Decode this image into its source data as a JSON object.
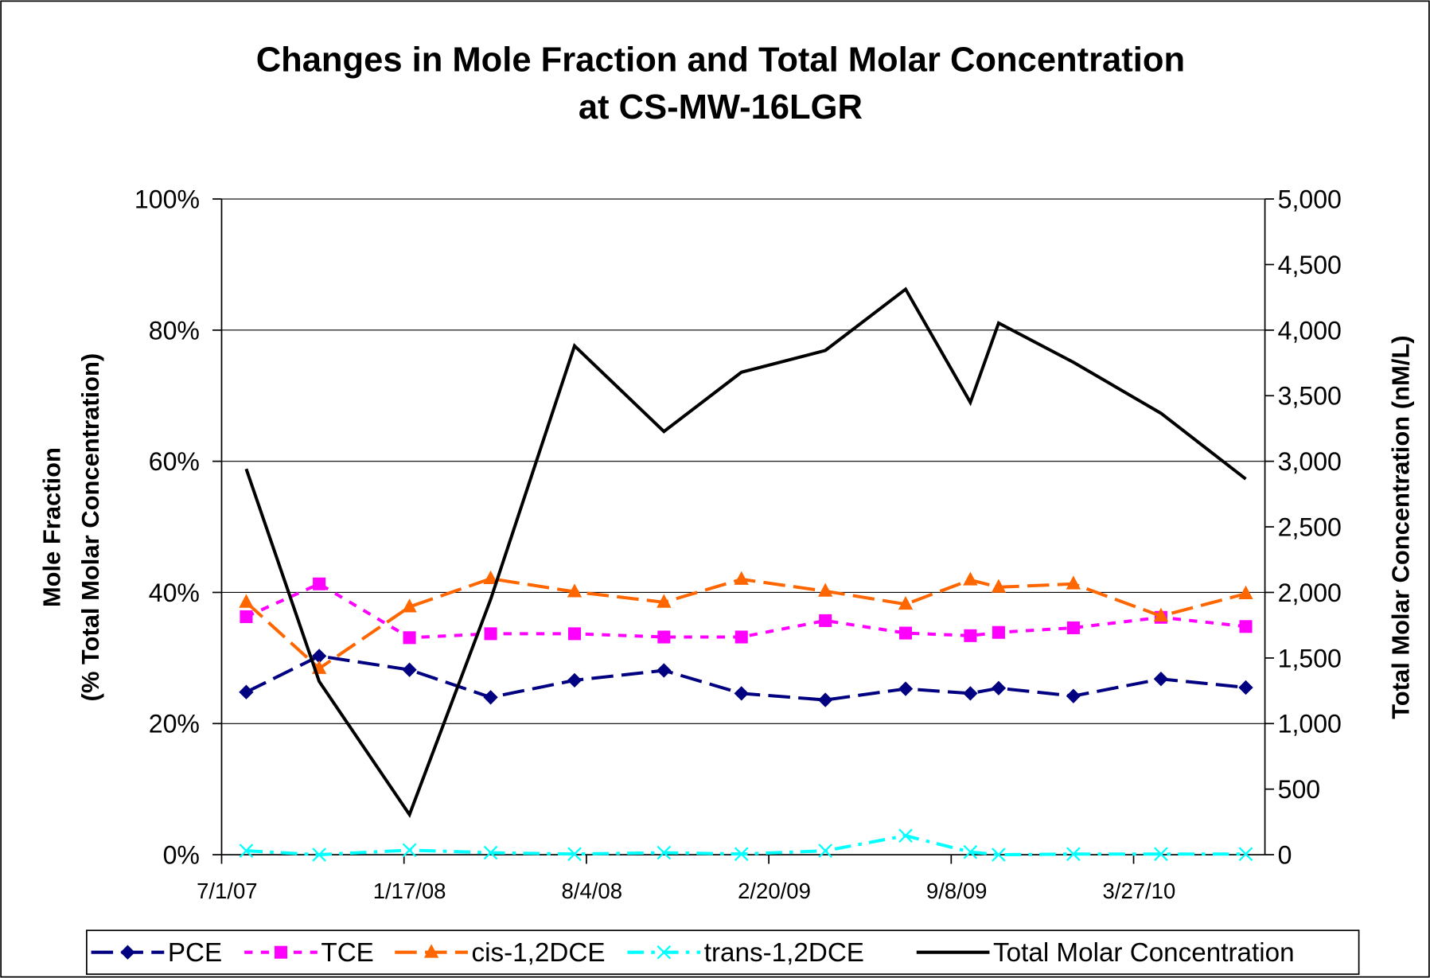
{
  "chart_data": {
    "type": "line",
    "title": [
      "Changes in Mole Fraction and Total Molar Concentration",
      "at CS-MW-16LGR"
    ],
    "ylabel": [
      "Mole Fraction",
      "(% Total Molar Concentration)"
    ],
    "y2label": "Total Molar Concentration (nM/L)",
    "x": [
      "7/28/07",
      "10/16/07",
      "1/23/08",
      "4/21/08",
      "7/22/08",
      "10/28/08",
      "1/21/09",
      "4/23/09",
      "7/20/09",
      "9/29/09",
      "10/30/09",
      "1/20/10",
      "4/26/10",
      "7/28/10"
    ],
    "xlim": [
      "7/1/07",
      "8/18/10"
    ],
    "xticks": [
      "7/1/07",
      "1/17/08",
      "8/4/08",
      "2/20/09",
      "9/8/09",
      "3/27/10"
    ],
    "ylim": [
      0,
      100
    ],
    "yticks": [
      {
        "value": 0,
        "label": "0%"
      },
      {
        "value": 20,
        "label": "20%"
      },
      {
        "value": 40,
        "label": "40%"
      },
      {
        "value": 60,
        "label": "60%"
      },
      {
        "value": 80,
        "label": "80%"
      },
      {
        "value": 100,
        "label": "100%"
      }
    ],
    "y2lim": [
      0,
      5000
    ],
    "y2ticks": [
      0,
      500,
      {
        "value": 1000,
        "label": "1,000"
      },
      {
        "value": 1500,
        "label": "1,500"
      },
      {
        "value": 2000,
        "label": "2,000"
      },
      {
        "value": 2500,
        "label": "2,500"
      },
      {
        "value": 3000,
        "label": "3,000"
      },
      {
        "value": 3500,
        "label": "3,500"
      },
      {
        "value": 4000,
        "label": "4,000"
      },
      {
        "value": 4500,
        "label": "4,500"
      },
      {
        "value": 5000,
        "label": "5,000"
      }
    ],
    "grid": true,
    "legend": "bottom",
    "series": [
      {
        "name": "PCE",
        "color": "#000080",
        "marker": "diamond",
        "linestyle": "long-dash",
        "values": [
          24.8,
          30.3,
          28.2,
          24.0,
          26.6,
          28.1,
          24.6,
          23.6,
          25.3,
          24.6,
          25.4,
          24.2,
          26.8,
          25.5
        ]
      },
      {
        "name": "TCE",
        "color": "#ff00ff",
        "marker": "square",
        "linestyle": "dash",
        "values": [
          36.3,
          41.3,
          33.1,
          33.7,
          33.7,
          33.2,
          33.2,
          35.7,
          33.8,
          33.4,
          33.9,
          34.6,
          36.2,
          34.8
        ]
      },
      {
        "name": "cis-1,2DCE",
        "color": "#ff6600",
        "marker": "triangle",
        "linestyle": "long-dash",
        "values": [
          38.5,
          28.4,
          37.8,
          42.1,
          40.1,
          38.5,
          42.0,
          40.2,
          38.2,
          41.9,
          40.8,
          41.3,
          36.4,
          39.8
        ]
      },
      {
        "name": "trans-1,2DCE",
        "color": "#00ffff",
        "marker": "x",
        "linestyle": "dash-dot",
        "values": [
          0.6,
          0,
          0.7,
          0.3,
          0.1,
          0.3,
          0.1,
          0.6,
          2.9,
          0.4,
          0,
          0.1,
          0.1,
          0.1
        ]
      },
      {
        "name": "Total Molar Concentration",
        "color": "#000000",
        "marker": "none",
        "linestyle": "solid",
        "axis": "y2",
        "values": [
          2942,
          1321,
          306,
          1947,
          3880,
          3227,
          3679,
          3845,
          4312,
          3449,
          4054,
          3755,
          3366,
          2865
        ]
      }
    ]
  }
}
